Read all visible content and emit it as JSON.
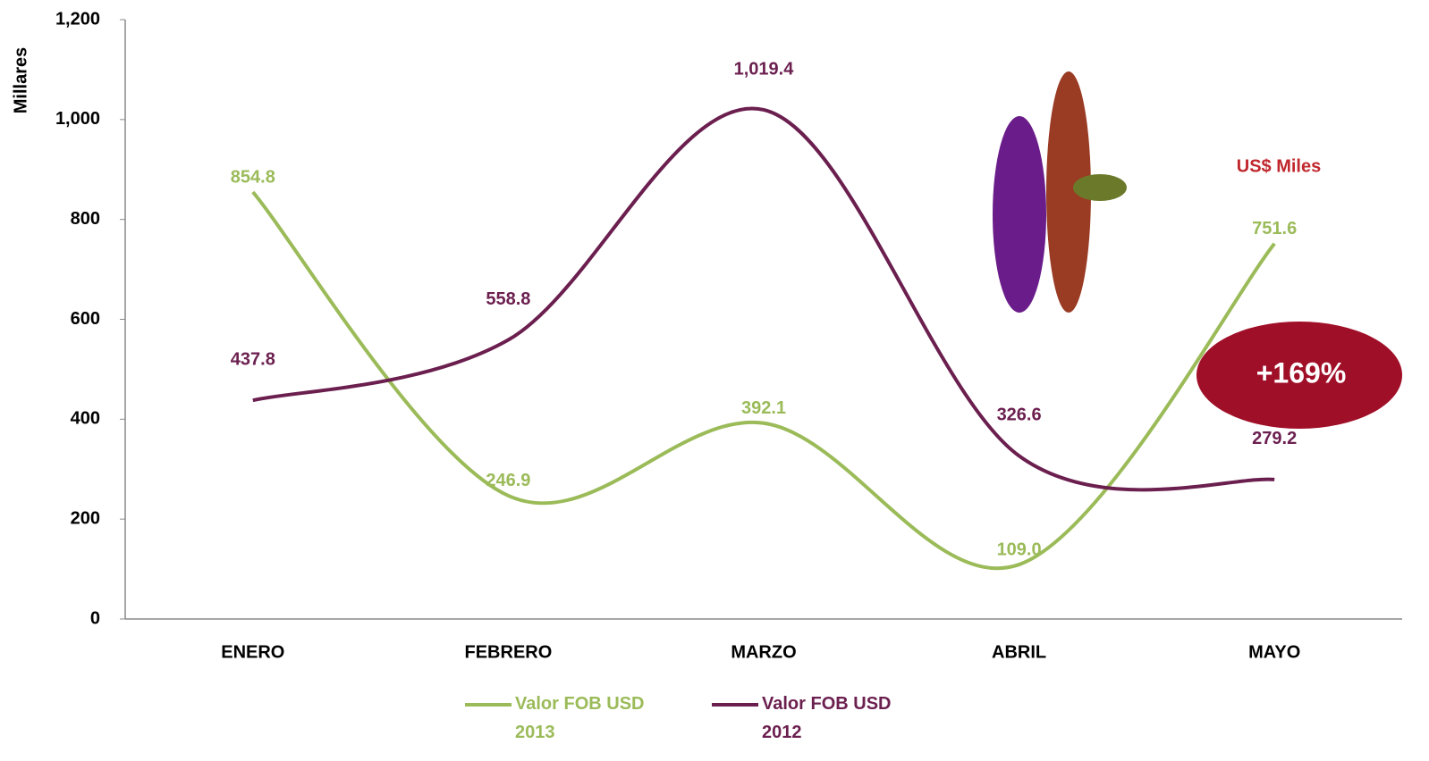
{
  "chart_data": {
    "type": "line",
    "y_label": "Millares",
    "categories": [
      "ENERO",
      "FEBRERO",
      "MARZO",
      "ABRIL",
      "MAYO"
    ],
    "series": [
      {
        "name": "Valor FOB USD 2013",
        "color": "#9bbb59",
        "values": [
          854.8,
          246.9,
          392.1,
          109.0,
          751.6
        ],
        "value_labels": [
          "854.8",
          "246.9",
          "392.1",
          "109.0",
          "751.6"
        ]
      },
      {
        "name": "Valor FOB USD 2012",
        "color": "#6b1f4f",
        "values": [
          437.8,
          558.8,
          1019.4,
          326.6,
          279.2
        ],
        "value_labels": [
          "437.8",
          "558.8",
          "1,019.4",
          "326.6",
          "279.2"
        ]
      }
    ],
    "ylim": [
      0,
      1200
    ],
    "yticks": [
      0,
      200,
      400,
      600,
      800,
      {
        "value": 1000,
        "label": "1,000"
      },
      {
        "value": 1200,
        "label": "1,200"
      }
    ],
    "annotations": [
      "US$ Miles",
      "+169%"
    ],
    "smooth": true,
    "legend": "bottom"
  }
}
